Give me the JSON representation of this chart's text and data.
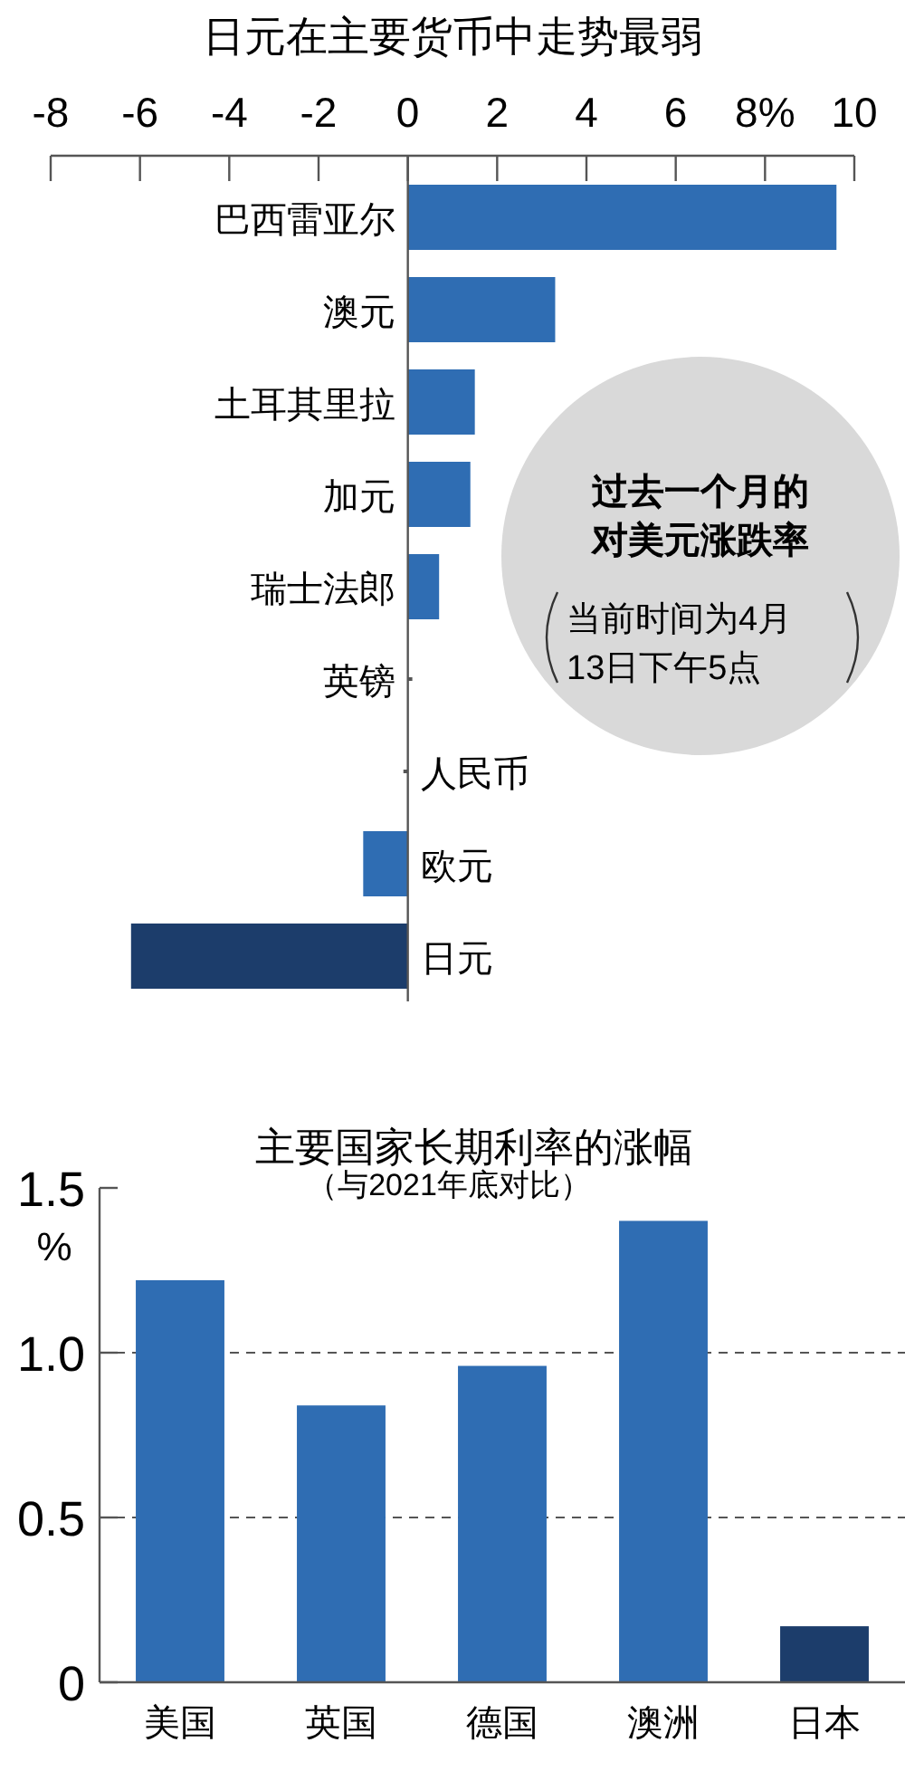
{
  "chart_data": [
    {
      "type": "bar",
      "orientation": "horizontal",
      "title": "日元在主要货币中走势最弱",
      "categories": [
        "巴西雷亚尔",
        "澳元",
        "土耳其里拉",
        "加元",
        "瑞士法郎",
        "英镑",
        "人民币",
        "欧元",
        "日元"
      ],
      "values": [
        9.6,
        3.3,
        1.5,
        1.4,
        0.7,
        0.1,
        -0.1,
        -1.0,
        -6.2
      ],
      "colors": [
        "#2f6db3",
        "#2f6db3",
        "#2f6db3",
        "#2f6db3",
        "#2f6db3",
        "#555555",
        "#555555",
        "#2f6db3",
        "#1c3d6b"
      ],
      "xlim": [
        -8,
        10
      ],
      "xticks": [
        -8,
        -6,
        -4,
        -2,
        0,
        2,
        4,
        6,
        {
          "value": 8,
          "label": "8%"
        },
        10
      ],
      "annotations": [
        "过去一个月的",
        "对美元涨跌率",
        "当前时间为4月",
        "13日下午5点"
      ]
    },
    {
      "type": "bar",
      "title": "主要国家长期利率的涨幅",
      "subtitle": "（与2021年底对比）",
      "ylabel": "%",
      "categories": [
        "美国",
        "英国",
        "德国",
        "澳洲",
        "日本"
      ],
      "values": [
        1.22,
        0.84,
        0.96,
        1.4,
        0.17
      ],
      "colors": [
        "#2f6db3",
        "#2f6db3",
        "#2f6db3",
        "#2f6db3",
        "#1c3d6b"
      ],
      "ylim": [
        0,
        1.5
      ],
      "yticks": [
        0,
        0.5,
        {
          "value": 1,
          "label": "1.0"
        },
        1.5
      ],
      "grid": "y"
    }
  ]
}
